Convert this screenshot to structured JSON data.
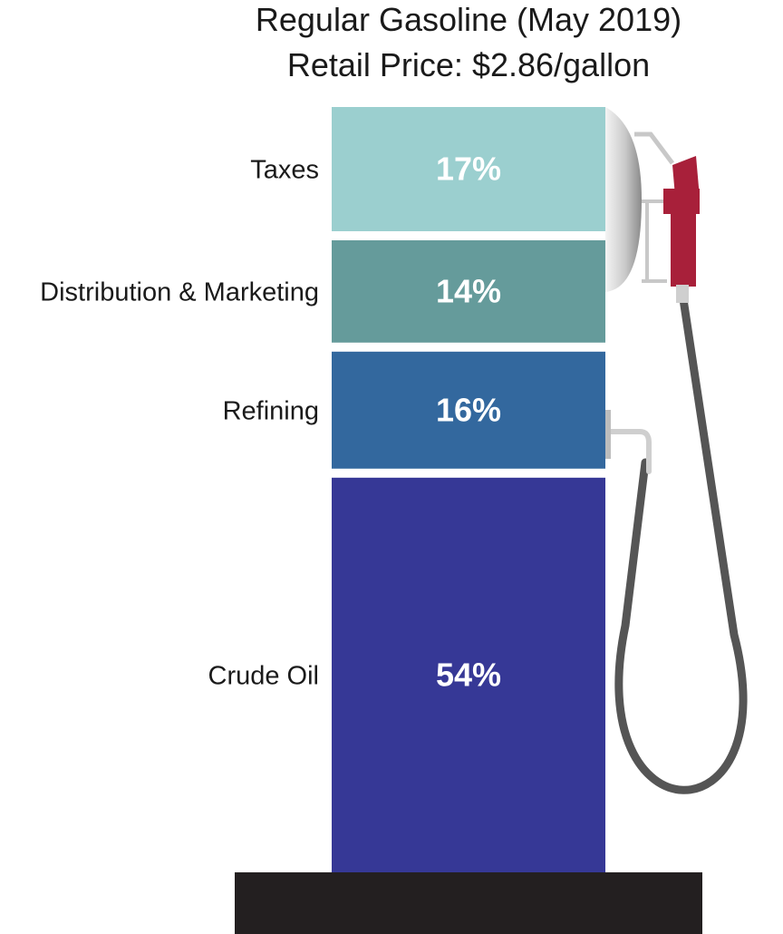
{
  "chart_data": {
    "type": "bar",
    "stacked": true,
    "title": "Regular Gasoline (May 2019)",
    "subtitle": "Retail Price: $2.86/gallon",
    "categories": [
      "Taxes",
      "Distribution & Marketing",
      "Refining",
      "Crude Oil"
    ],
    "values": [
      17,
      14,
      16,
      54
    ],
    "value_labels": [
      "17%",
      "14%",
      "16%",
      "54%"
    ],
    "unit": "%",
    "colors": [
      "#9bcfcf",
      "#659b9b",
      "#33689e",
      "#363896"
    ],
    "legend": "none",
    "grid": false
  },
  "decoration": {
    "base_color": "#231f20",
    "nozzle_color": "#a8203a",
    "hose_color": "#555555",
    "icons": [
      "gas-pump-nozzle-icon",
      "hose-icon"
    ]
  }
}
